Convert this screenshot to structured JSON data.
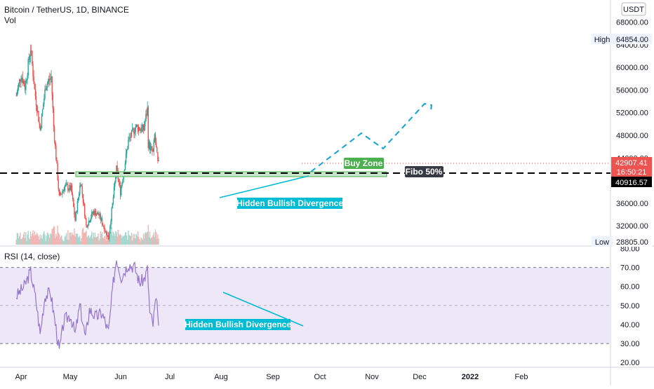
{
  "header": {
    "symbol_line": "Bitcoin / TetherUS, 1D, BINANCE",
    "vol_label": "Vol",
    "currency_badge": "USDT",
    "rsi_label": "RSI (14, close)"
  },
  "price_axis": {
    "ticks": [
      {
        "label": "68000.00",
        "value": 68000
      },
      {
        "label": "64000.00",
        "value": 64000
      },
      {
        "label": "60000.00",
        "value": 60000
      },
      {
        "label": "56000.00",
        "value": 56000
      },
      {
        "label": "52000.00",
        "value": 52000
      },
      {
        "label": "48000.00",
        "value": 48000
      },
      {
        "label": "44000.00",
        "value": 44000
      },
      {
        "label": "36000.00",
        "value": 36000
      },
      {
        "label": "32000.00",
        "value": 32000
      }
    ],
    "high_label": "High",
    "high_value": "64854.00",
    "low_label": "Low",
    "low_value": "28805.00",
    "last_price": "42907.41",
    "countdown": "16:50:21",
    "line_price": "40916.57",
    "last_price_color": "#ef5350",
    "line_price_color": "#000000"
  },
  "rsi_axis": {
    "ticks": [
      {
        "label": "80.00",
        "value": 80
      },
      {
        "label": "70.00",
        "value": 70
      },
      {
        "label": "60.00",
        "value": 60
      },
      {
        "label": "50.00",
        "value": 50
      },
      {
        "label": "40.00",
        "value": 40
      },
      {
        "label": "30.00",
        "value": 30
      },
      {
        "label": "20.00",
        "value": 20
      }
    ],
    "upper_band": 70,
    "middle_band": 50,
    "lower_band": 30,
    "band_fill": "#ede7f8",
    "line_color": "#9575cd"
  },
  "time_axis": {
    "labels": [
      {
        "label": "Apr",
        "bold": false
      },
      {
        "label": "May",
        "bold": false
      },
      {
        "label": "Jun",
        "bold": false
      },
      {
        "label": "Jul",
        "bold": false
      },
      {
        "label": "Aug",
        "bold": false
      },
      {
        "label": "Sep",
        "bold": false
      },
      {
        "label": "Oct",
        "bold": false
      },
      {
        "label": "Nov",
        "bold": false
      },
      {
        "label": "Dec",
        "bold": false
      },
      {
        "label": "2022",
        "bold": true
      },
      {
        "label": "Feb",
        "bold": false
      }
    ]
  },
  "annotations": {
    "buy_zone": "Buy Zone",
    "fibo": "Fibo 50%",
    "hidden_div_price": "Hidden Bullish Divergence",
    "hidden_div_rsi": "Hidden Bullish Divergence",
    "buy_zone_color": "#4caf50",
    "zone_fill": "#c8e6c9",
    "divergence_color": "#00bcd4",
    "fibo_bg": "#363a45"
  },
  "chart_data": [
    {
      "type": "candlestick",
      "title": "Bitcoin / TetherUS, 1D, BINANCE",
      "ylim": [
        28805,
        64854
      ],
      "up_color": "#26a69a",
      "down_color": "#ef5350",
      "keypoints": [
        {
          "date": "2021-03-26",
          "price": 55000
        },
        {
          "date": "2021-04-01",
          "price": 58800
        },
        {
          "date": "2021-04-06",
          "price": 56500
        },
        {
          "date": "2021-04-13",
          "price": 63500
        },
        {
          "date": "2021-04-18",
          "price": 56000
        },
        {
          "date": "2021-04-25",
          "price": 49000
        },
        {
          "date": "2021-05-02",
          "price": 56800
        },
        {
          "date": "2021-05-09",
          "price": 58300
        },
        {
          "date": "2021-05-12",
          "price": 49500
        },
        {
          "date": "2021-05-19",
          "price": 37000
        },
        {
          "date": "2021-05-26",
          "price": 39000
        },
        {
          "date": "2021-06-03",
          "price": 38500
        },
        {
          "date": "2021-06-08",
          "price": 33000
        },
        {
          "date": "2021-06-15",
          "price": 40000
        },
        {
          "date": "2021-06-22",
          "price": 32000
        },
        {
          "date": "2021-07-01",
          "price": 34500
        },
        {
          "date": "2021-07-08",
          "price": 33900
        },
        {
          "date": "2021-07-20",
          "price": 29800
        },
        {
          "date": "2021-07-26",
          "price": 37000
        },
        {
          "date": "2021-07-30",
          "price": 42000
        },
        {
          "date": "2021-08-04",
          "price": 38000
        },
        {
          "date": "2021-08-14",
          "price": 47000
        },
        {
          "date": "2021-08-23",
          "price": 49500
        },
        {
          "date": "2021-09-02",
          "price": 49000
        },
        {
          "date": "2021-09-07",
          "price": 52700
        },
        {
          "date": "2021-09-08",
          "price": 46500
        },
        {
          "date": "2021-09-14",
          "price": 44800
        },
        {
          "date": "2021-09-16",
          "price": 48000
        },
        {
          "date": "2021-09-20",
          "price": 43000
        },
        {
          "date": "2021-09-21",
          "price": 42907.41
        }
      ]
    },
    {
      "type": "line",
      "title": "RSI (14, close)",
      "ylim": [
        20,
        80
      ],
      "x": [
        "2021-03-26",
        "2021-04-05",
        "2021-04-13",
        "2021-04-20",
        "2021-04-25",
        "2021-05-01",
        "2021-05-08",
        "2021-05-15",
        "2021-05-19",
        "2021-05-25",
        "2021-06-02",
        "2021-06-08",
        "2021-06-14",
        "2021-06-21",
        "2021-06-26",
        "2021-07-04",
        "2021-07-12",
        "2021-07-20",
        "2021-07-26",
        "2021-07-30",
        "2021-08-05",
        "2021-08-14",
        "2021-08-22",
        "2021-08-28",
        "2021-09-03",
        "2021-09-07",
        "2021-09-10",
        "2021-09-14",
        "2021-09-17",
        "2021-09-20",
        "2021-09-21"
      ],
      "values": [
        55,
        60,
        68,
        52,
        35,
        55,
        57,
        38,
        26,
        42,
        45,
        35,
        50,
        33,
        48,
        44,
        46,
        36,
        62,
        75,
        65,
        72,
        70,
        62,
        64,
        69,
        46,
        40,
        52,
        48,
        39
      ]
    }
  ]
}
